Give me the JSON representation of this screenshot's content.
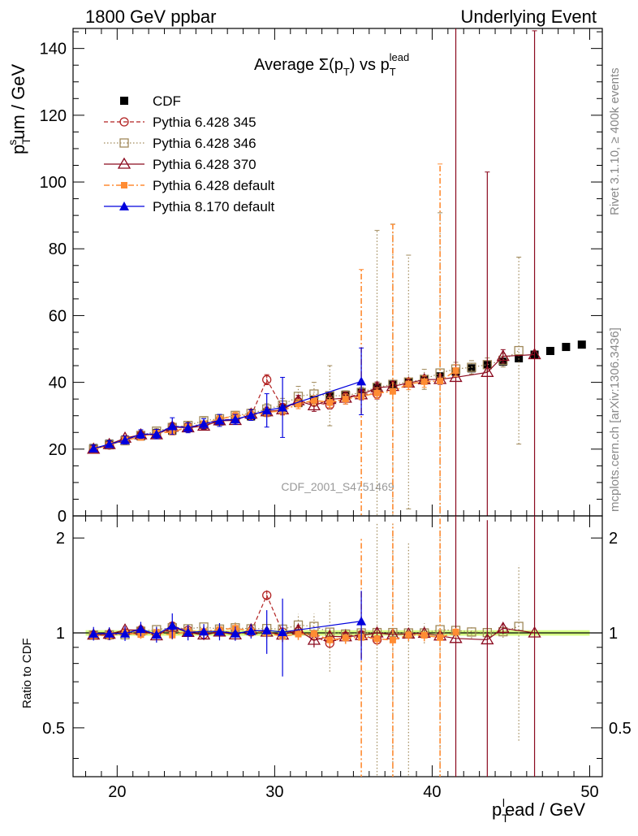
{
  "header": {
    "left": "1800 GeV ppbar",
    "right": "Underlying Event",
    "side_rivet": "Rivet 3.1.10, ≥ 400k events",
    "side_mcplots": "mcplots.cern.ch [arXiv:1306.3436]",
    "watermark": "CDF_2001_S4751469"
  },
  "colors": {
    "cdf": "#000000",
    "p345": "#b22222",
    "p346": "#a0895a",
    "p370": "#8b0a1f",
    "p6def": "#ff8c33",
    "p8def": "#0000dd",
    "band": "#ccff66"
  },
  "chart_data": [
    {
      "type": "scatter",
      "title": "Average Σ(pT) vs pT lead",
      "title_parts": {
        "main": "Average Σ(p",
        "sub1": "T",
        "close": ") vs p",
        "sub2": "T",
        "sup2": "lead"
      },
      "ylabel_parts": {
        "p": "p",
        "sub": "T",
        "sup": "s",
        "rest": "um / GeV"
      },
      "xlim": [
        17.2,
        50.8
      ],
      "ylim": [
        0,
        146
      ],
      "y_ticks": [
        0,
        20,
        40,
        60,
        80,
        100,
        120,
        140
      ],
      "series": [
        {
          "name": "CDF",
          "marker": "filled-square",
          "x": [
            18.5,
            19.5,
            20.5,
            21.5,
            22.5,
            23.5,
            24.5,
            25.5,
            26.5,
            27.5,
            28.5,
            29.5,
            30.5,
            31.5,
            32.5,
            33.5,
            34.5,
            35.5,
            36.5,
            37.5,
            38.5,
            39.5,
            40.5,
            41.5,
            42.5,
            43.5,
            44.5,
            45.5,
            46.5,
            47.5,
            48.5,
            49.5
          ],
          "y": [
            20.3,
            21.6,
            22.8,
            23.8,
            24.8,
            25.5,
            26.3,
            27.3,
            28.3,
            29.0,
            29.8,
            31.0,
            32.3,
            33.8,
            34.8,
            35.8,
            36.3,
            37.0,
            38.4,
            39.3,
            40.1,
            40.9,
            41.8,
            43.2,
            44.2,
            45.2,
            46.2,
            47.2,
            48.3,
            49.4,
            50.6,
            51.3
          ]
        },
        {
          "name": "Pythia 6.428 345",
          "marker": "open-circle",
          "line": "dashed",
          "x": [
            18.5,
            19.5,
            20.5,
            21.5,
            22.5,
            23.5,
            24.5,
            25.5,
            26.5,
            27.5,
            28.5,
            29.5,
            30.5,
            31.5,
            32.5,
            33.5,
            34.5,
            35.5,
            36.5
          ],
          "y": [
            20.0,
            21.2,
            22.8,
            24.3,
            24.6,
            26.8,
            26.8,
            27.0,
            28.7,
            29.0,
            30.0,
            40.8,
            32.5,
            34.2,
            34.0,
            33.2,
            35.5,
            36.5,
            36.5
          ],
          "err": [
            0.5,
            0.5,
            0.5,
            0.6,
            0.6,
            0.7,
            0.7,
            0.7,
            0.8,
            0.8,
            0.9,
            1.5,
            1.0,
            1.0,
            1.0,
            1.2,
            1.2,
            1.3,
            1.5
          ]
        },
        {
          "name": "Pythia 6.428 346",
          "marker": "open-square",
          "line": "dotted",
          "x": [
            18.5,
            19.5,
            20.5,
            21.5,
            22.5,
            23.5,
            24.5,
            25.5,
            26.5,
            27.5,
            28.5,
            29.5,
            30.5,
            31.5,
            32.5,
            33.5,
            34.5,
            35.5,
            36.5,
            37.5,
            38.5,
            39.5,
            40.5,
            41.5,
            42.5,
            43.5,
            44.5,
            45.5
          ],
          "y": [
            20.0,
            21.3,
            22.5,
            24.1,
            25.4,
            26.5,
            27.1,
            28.5,
            29.1,
            30.1,
            30.7,
            32.0,
            33.2,
            35.8,
            36.5,
            36.0,
            36.0,
            37.0,
            38.5,
            39.4,
            40.1,
            40.9,
            42.8,
            44.0,
            44.5,
            45.3,
            46.6,
            49.5
          ],
          "err": [
            0.6,
            0.6,
            0.6,
            0.7,
            0.8,
            0.8,
            0.9,
            1.0,
            1.1,
            1.2,
            1.3,
            1.6,
            2.0,
            3.0,
            3.5,
            9.0,
            1.5,
            1.5,
            47,
            48,
            38,
            3,
            48,
            2,
            2,
            2,
            2,
            28
          ]
        },
        {
          "name": "Pythia 6.428 370",
          "marker": "open-triangle",
          "line": "solid",
          "x": [
            18.5,
            19.5,
            20.5,
            21.5,
            22.5,
            23.5,
            24.5,
            25.5,
            26.5,
            27.5,
            28.5,
            29.5,
            30.5,
            31.5,
            32.5,
            33.5,
            34.5,
            35.5,
            36.5,
            37.5,
            38.5,
            39.5,
            40.5,
            41.5,
            43.5,
            44.5,
            46.5
          ],
          "y": [
            20.0,
            21.4,
            23.3,
            24.3,
            24.3,
            26.6,
            26.4,
            26.9,
            28.5,
            28.6,
            30.5,
            31.2,
            31.8,
            34.5,
            33.0,
            34.9,
            35.3,
            36.3,
            38.4,
            38.8,
            39.8,
            40.8,
            40.9,
            41.5,
            43.0,
            47.8,
            48.3
          ],
          "err": [
            0.5,
            0.6,
            0.6,
            0.7,
            0.8,
            0.9,
            0.9,
            1.0,
            1.1,
            1.2,
            1.3,
            1.4,
            1.5,
            1.6,
            1.7,
            1.8,
            1.8,
            1.5,
            1.7,
            1.5,
            1.0,
            1.0,
            1.5,
            105,
            60,
            2,
            97
          ]
        },
        {
          "name": "Pythia 6.428 default",
          "marker": "filled-square-small",
          "line": "dashdot",
          "x": [
            18.5,
            19.5,
            20.5,
            21.5,
            22.5,
            23.5,
            24.5,
            25.5,
            26.5,
            27.5,
            28.5,
            29.5,
            30.5,
            31.5,
            32.5,
            33.5,
            34.5,
            35.5,
            36.5,
            37.5,
            38.5,
            39.5,
            40.5,
            41.5
          ],
          "y": [
            19.9,
            21.2,
            22.8,
            23.5,
            24.9,
            25.1,
            26.6,
            27.6,
            29.0,
            30.0,
            30.2,
            31.0,
            31.5,
            33.5,
            34.6,
            34.0,
            35.0,
            35.8,
            36.8,
            37.3,
            39.5,
            40.2,
            40.4,
            43.5
          ],
          "err": [
            0.6,
            0.6,
            0.7,
            0.7,
            0.8,
            0.8,
            0.9,
            0.9,
            1.0,
            1.1,
            1.2,
            1.3,
            1.3,
            1.4,
            1.4,
            1.5,
            1.5,
            38,
            1.6,
            50,
            1.7,
            1.7,
            65,
            1.8
          ]
        },
        {
          "name": "Pythia 8.170 default",
          "marker": "filled-triangle",
          "line": "solid",
          "x": [
            18.5,
            19.5,
            20.5,
            21.5,
            22.5,
            23.5,
            24.5,
            25.5,
            26.5,
            27.5,
            28.5,
            29.5,
            30.5,
            35.5
          ],
          "y": [
            20.2,
            21.5,
            22.7,
            24.5,
            24.5,
            26.9,
            26.4,
            27.6,
            28.6,
            28.9,
            30.2,
            31.6,
            32.5,
            40.3
          ],
          "err": [
            1.0,
            1.0,
            1.2,
            1.3,
            1.4,
            2.5,
            1.5,
            1.5,
            1.8,
            1.5,
            1.6,
            5.0,
            9.0,
            10.0
          ]
        }
      ]
    },
    {
      "type": "scatter",
      "ylabel": "Ratio to CDF",
      "xlabel_parts": {
        "p": "p",
        "sub": "T",
        "sup": "l",
        "rest": "ead / GeV"
      },
      "xlim": [
        17.2,
        50.8
      ],
      "ylim": [
        0.35,
        2.35
      ],
      "y_scale": "log",
      "y_ticks": [
        0.5,
        1,
        2
      ],
      "y_tick_labels": [
        "0.5",
        "1",
        "2"
      ],
      "x_ticks": [
        20,
        30,
        40,
        50
      ],
      "x_tick_labels": [
        "20",
        "30",
        "40",
        "50"
      ],
      "band": {
        "x": [
          18,
          50
        ],
        "halfwidth": 0.02
      }
    }
  ]
}
